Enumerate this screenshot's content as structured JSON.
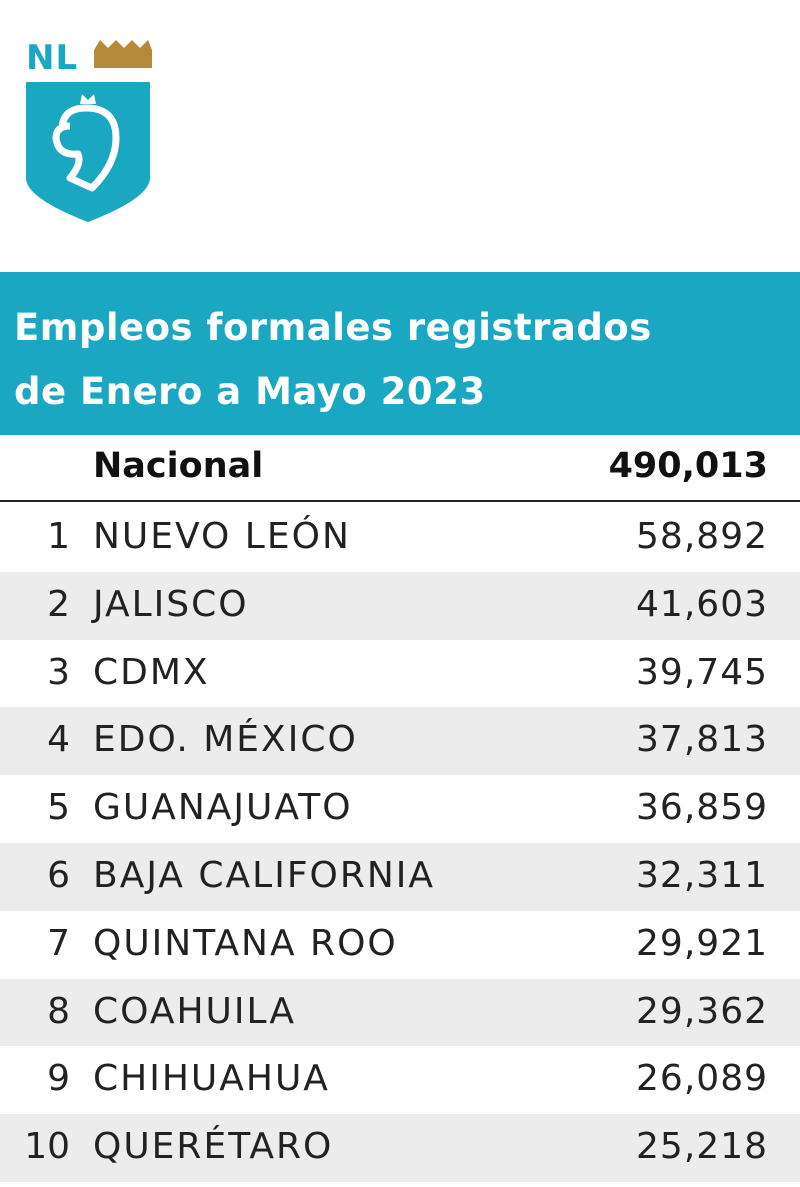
{
  "logo": {
    "text": "NL"
  },
  "title": {
    "line1": "Empleos formales registrados",
    "line2": "de Enero a Mayo 2023"
  },
  "table": {
    "header": {
      "name": "Nacional",
      "value": "490,013"
    },
    "rows": [
      [
        1,
        "NUEVO LEÓN",
        "58,892"
      ],
      [
        2,
        "JALISCO",
        "41,603"
      ],
      [
        3,
        "CDMX",
        "39,745"
      ],
      [
        4,
        "EDO. MÉXICO",
        "37,813"
      ],
      [
        5,
        "GUANAJUATO",
        "36,859"
      ],
      [
        6,
        "BAJA CALIFORNIA",
        "32,311"
      ],
      [
        7,
        "QUINTANA ROO",
        "29,921"
      ],
      [
        8,
        "COAHUILA",
        "29,362"
      ],
      [
        9,
        "CHIHUAHUA",
        "26,089"
      ],
      [
        10,
        "QUERÉTARO",
        "25,218"
      ]
    ]
  }
}
